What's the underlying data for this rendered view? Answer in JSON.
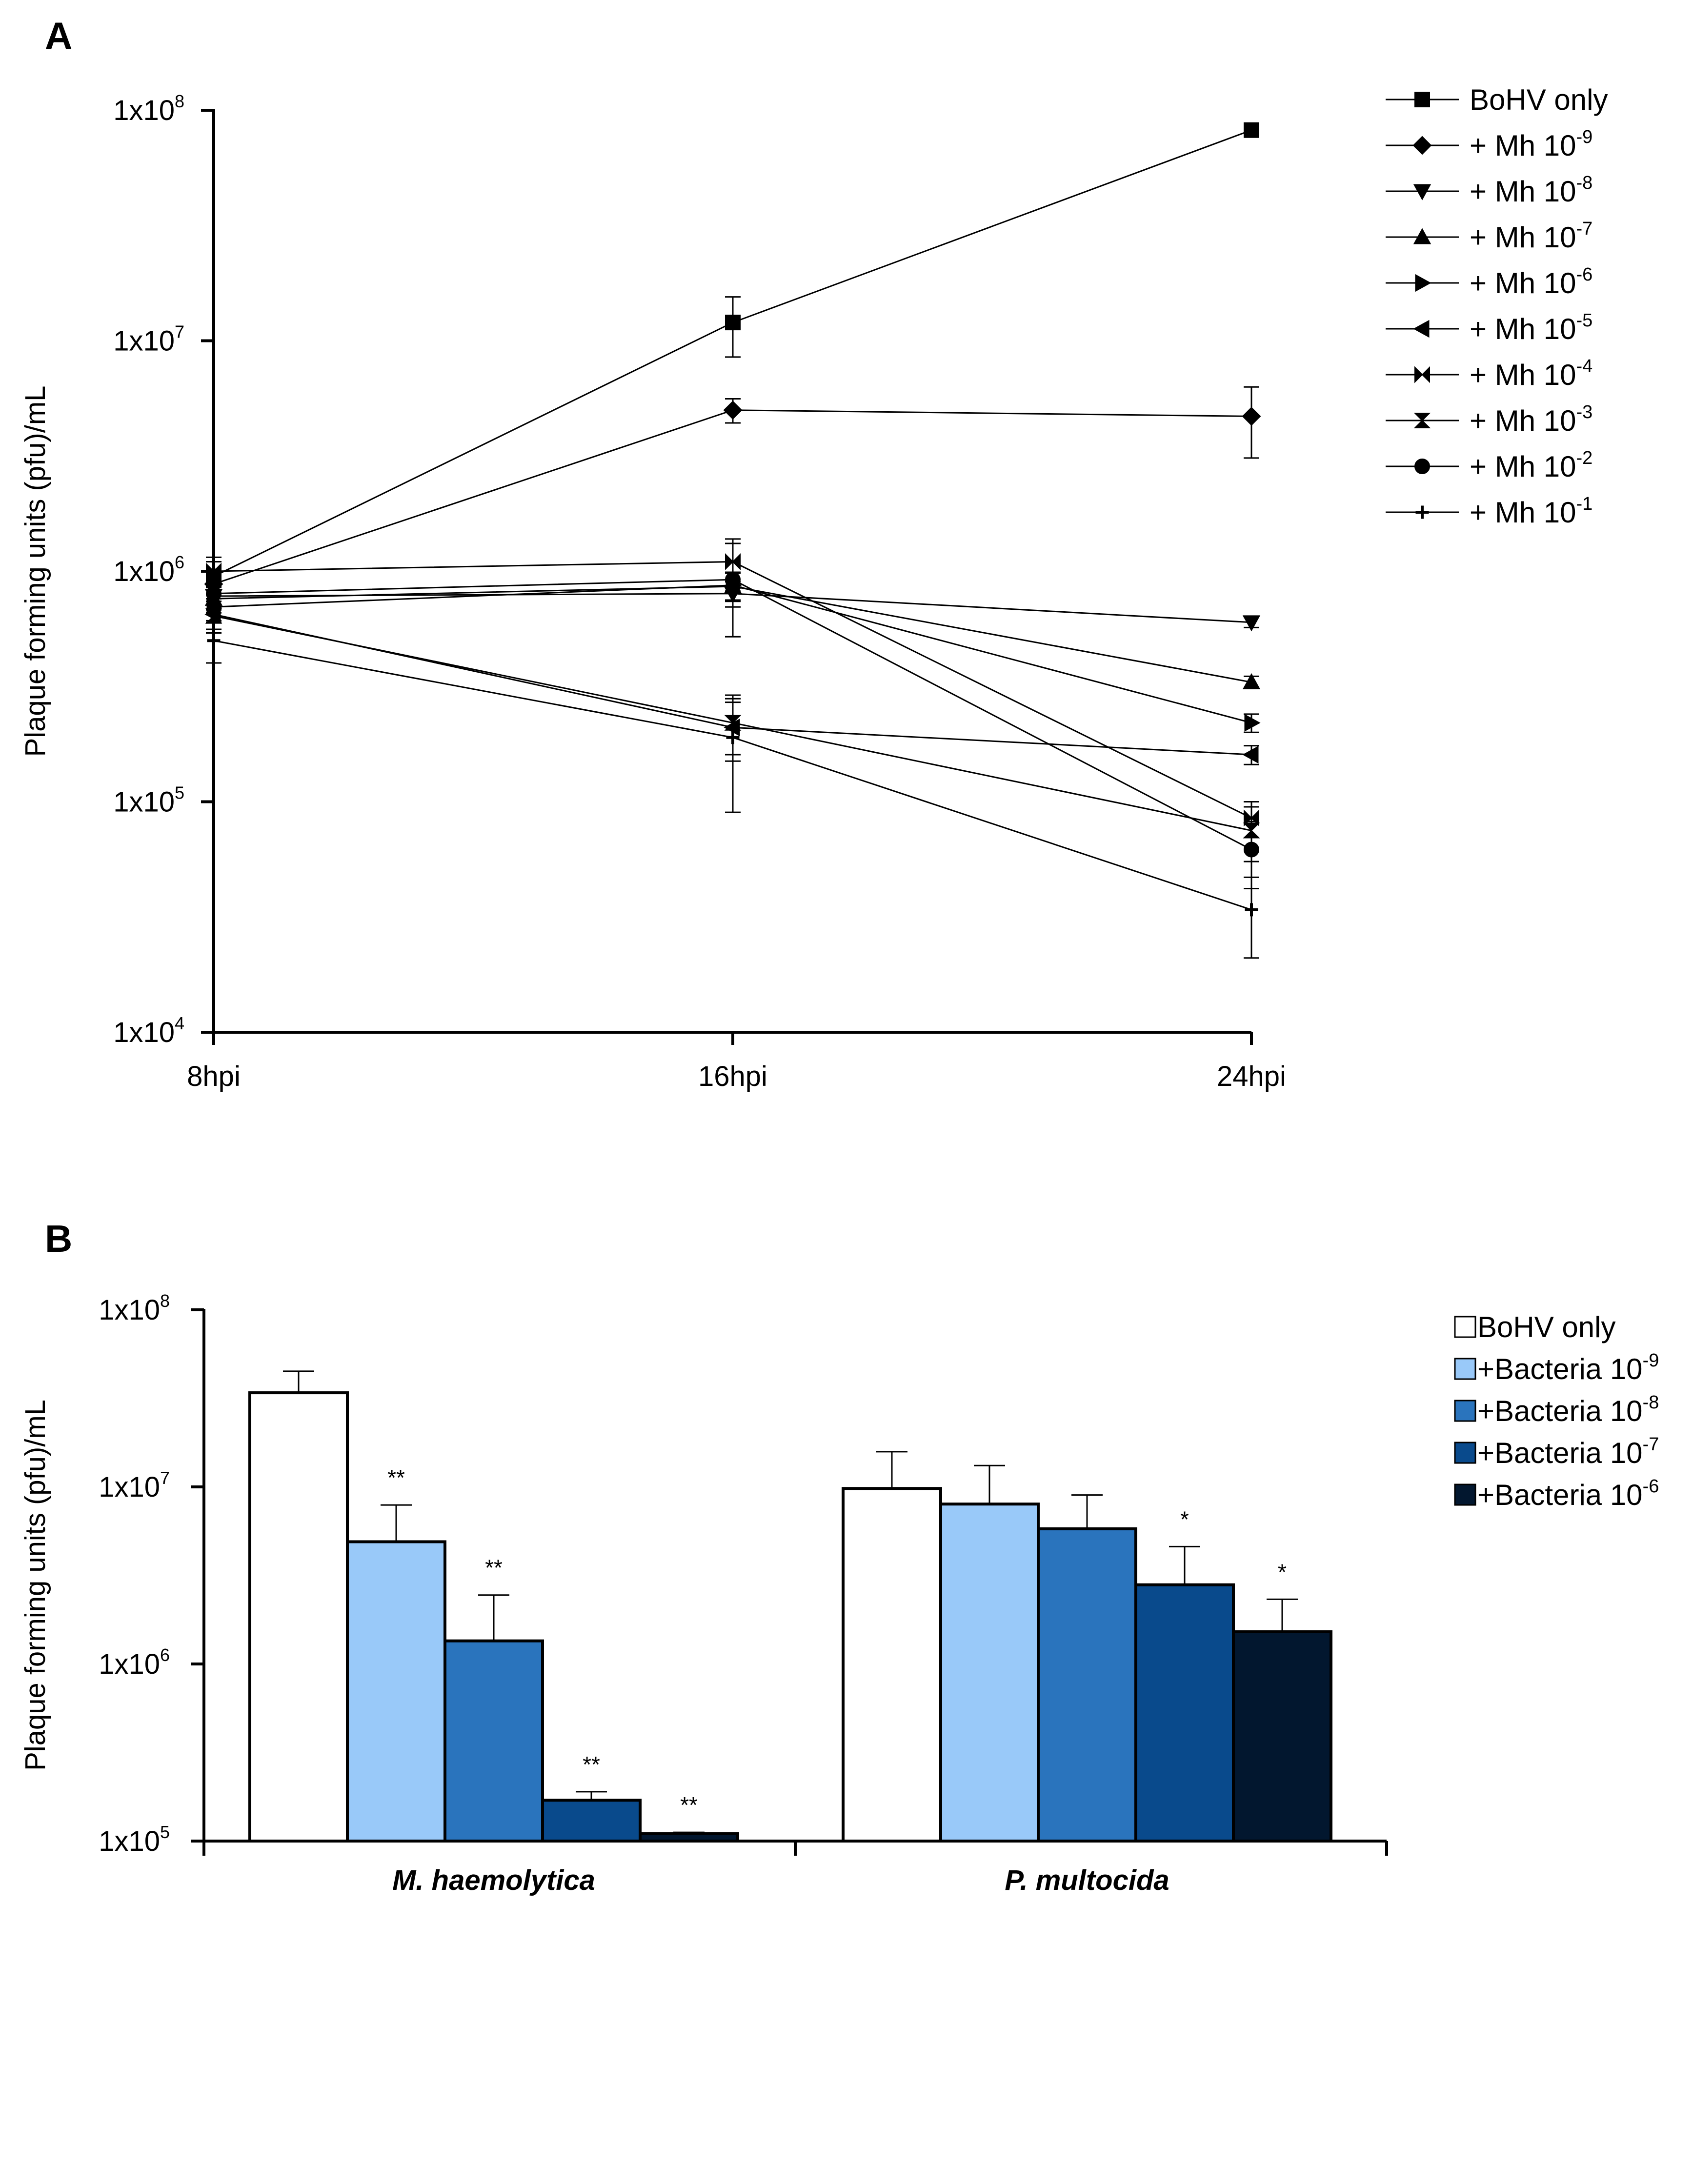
{
  "chart_data": [
    {
      "panel": "A",
      "type": "line",
      "ylabel": "Plaque forming units (pfu)/mL",
      "xlabel": "",
      "yscale": "log",
      "ylim": [
        10000,
        100000000
      ],
      "yticks": [
        {
          "base": "1x10",
          "exp": "4",
          "value": 10000
        },
        {
          "base": "1x10",
          "exp": "5",
          "value": 100000
        },
        {
          "base": "1x10",
          "exp": "6",
          "value": 1000000
        },
        {
          "base": "1x10",
          "exp": "7",
          "value": 10000000
        },
        {
          "base": "1x10",
          "exp": "8",
          "value": 100000000
        }
      ],
      "x": [
        "8hpi",
        "16hpi",
        "24hpi"
      ],
      "series": [
        {
          "name": "BoHV only",
          "label_base": "BoHV only",
          "label_exp": "",
          "marker": "square",
          "values": [
            950000,
            12000000,
            82000000
          ],
          "errors": [
            150000,
            3500000,
            2000000
          ]
        },
        {
          "name": "+ Mh 10-9",
          "label_base": "+ Mh 10",
          "label_exp": "-9",
          "marker": "diamond",
          "values": [
            880000,
            5000000,
            4700000
          ],
          "errors": [
            120000,
            600000,
            1600000
          ]
        },
        {
          "name": "+ Mh 10-8",
          "label_base": "+ Mh 10",
          "label_exp": "-8",
          "marker": "triangle-down",
          "values": [
            780000,
            800000,
            600000
          ],
          "errors": [
            100000,
            100000,
            30000
          ]
        },
        {
          "name": "+ Mh 10-7",
          "label_base": "+ Mh 10",
          "label_exp": "-7",
          "marker": "triangle-up",
          "values": [
            760000,
            860000,
            330000
          ],
          "errors": [
            100000,
            120000,
            20000
          ]
        },
        {
          "name": "+ Mh 10-6",
          "label_base": "+ Mh 10",
          "label_exp": "-6",
          "marker": "triangle-right",
          "values": [
            700000,
            870000,
            220000
          ],
          "errors": [
            90000,
            120000,
            20000
          ]
        },
        {
          "name": "+ Mh 10-5",
          "label_base": "+ Mh 10",
          "label_exp": "-5",
          "marker": "triangle-left",
          "values": [
            650000,
            210000,
            160000
          ],
          "errors": [
            90000,
            60000,
            15000
          ]
        },
        {
          "name": "+ Mh 10-4",
          "label_base": "+ Mh 10",
          "label_exp": "-4",
          "marker": "bowtie",
          "values": [
            1000000,
            1100000,
            85000
          ],
          "errors": [
            150000,
            280000,
            15000
          ]
        },
        {
          "name": "+ Mh 10-3",
          "label_base": "+ Mh 10",
          "label_exp": "-3",
          "marker": "hourglass",
          "values": [
            640000,
            220000,
            75000
          ],
          "errors": [
            100000,
            60000,
            20000
          ]
        },
        {
          "name": "+ Mh 10-2",
          "label_base": "+ Mh 10",
          "label_exp": "-2",
          "marker": "circle",
          "values": [
            800000,
            920000,
            62000
          ],
          "errors": [
            120000,
            400000,
            20000
          ]
        },
        {
          "name": "+ Mh 10-1",
          "label_base": "+ Mh 10",
          "label_exp": "-1",
          "marker": "cross",
          "values": [
            500000,
            190000,
            34000
          ],
          "errors": [
            100000,
            100000,
            13000
          ]
        }
      ]
    },
    {
      "panel": "B",
      "type": "bar",
      "ylabel": "Plaque forming units (pfu)/mL",
      "xlabel": "",
      "yscale": "log",
      "ylim": [
        100000,
        100000000
      ],
      "yticks": [
        {
          "base": "1x10",
          "exp": "5",
          "value": 100000
        },
        {
          "base": "1x10",
          "exp": "6",
          "value": 1000000
        },
        {
          "base": "1x10",
          "exp": "7",
          "value": 10000000
        },
        {
          "base": "1x10",
          "exp": "8",
          "value": 100000000
        }
      ],
      "categories": [
        "M. haemolytica",
        "P. multocida"
      ],
      "series": [
        {
          "name": "BoHV only",
          "label_base": "BoHV only",
          "label_exp": "",
          "color": "#ffffff",
          "values": [
            34000000,
            9800000
          ],
          "errors": [
            11000000,
            6000000
          ],
          "sig": [
            "",
            ""
          ]
        },
        {
          "name": "+Bacteria 10-9",
          "label_base": "+Bacteria 10",
          "label_exp": "-9",
          "color": "#99c9f9",
          "values": [
            4900000,
            8000000
          ],
          "errors": [
            3000000,
            5200000
          ],
          "sig": [
            "**",
            ""
          ]
        },
        {
          "name": "+Bacteria 10-8",
          "label_base": "+Bacteria 10",
          "label_exp": "-8",
          "color": "#2a74bd",
          "values": [
            1350000,
            5800000
          ],
          "errors": [
            1100000,
            3200000
          ],
          "sig": [
            "**",
            ""
          ]
        },
        {
          "name": "+Bacteria 10-7",
          "label_base": "+Bacteria 10",
          "label_exp": "-7",
          "color": "#094a8c",
          "values": [
            170000,
            2800000
          ],
          "errors": [
            20000,
            1800000
          ],
          "sig": [
            "**",
            "*"
          ]
        },
        {
          "name": "+Bacteria 10-6",
          "label_base": "+Bacteria 10",
          "label_exp": "-6",
          "color": "#02172f",
          "values": [
            110000,
            1520000
          ],
          "errors": [
            2000,
            800000
          ],
          "sig": [
            "**",
            "*"
          ]
        }
      ]
    }
  ],
  "panels": {
    "a_letter": "A",
    "b_letter": "B"
  },
  "colors": {
    "axis": "#000000",
    "line": "#000000"
  }
}
